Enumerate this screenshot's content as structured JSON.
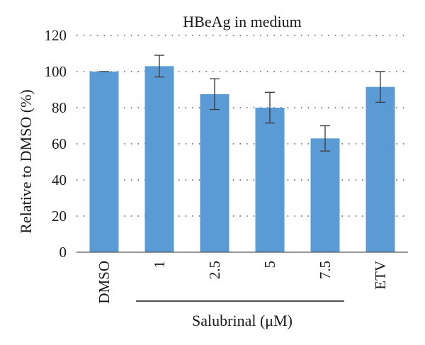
{
  "chart_data": {
    "type": "bar",
    "title": "HBeAg in medium",
    "ylabel": "Relative to DMSO (%)",
    "xlabel": "",
    "group_label": "Salubrinal (μM)",
    "grouped_categories": [
      "1",
      "2.5",
      "5",
      "7.5"
    ],
    "categories": [
      "DMSO",
      "1",
      "2.5",
      "5",
      "7.5",
      "ETV"
    ],
    "values": [
      100,
      103,
      87.5,
      80,
      63,
      91.5
    ],
    "error": [
      0,
      6,
      8.5,
      8.5,
      7,
      8.5
    ],
    "ylim": [
      0,
      120
    ],
    "yticks": [
      0,
      20,
      40,
      60,
      80,
      100,
      120
    ],
    "grid": "dotted horizontal",
    "bar_color": "#5b9bd5",
    "error_color": "#404040"
  }
}
